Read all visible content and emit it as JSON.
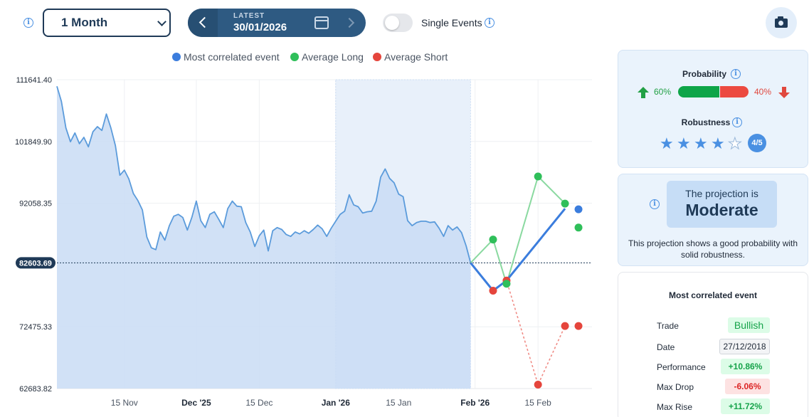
{
  "toolbar": {
    "period_selected": "1 Month",
    "date_nav_label": "LATEST",
    "date_value": "30/01/2026",
    "single_events_label": "Single Events"
  },
  "colors": {
    "most_correlated": "#3b7ddd",
    "average_long": "#2fbf5a",
    "average_short": "#e5453c",
    "history_line": "#5b9bdb",
    "history_fill": "#c9dcf4",
    "current_badge": "#1f3a57"
  },
  "chart_data": {
    "type": "line",
    "legend": [
      "Most correlated event",
      "Average Long",
      "Average Short"
    ],
    "legend_position": "top-center",
    "y_ticks": [
      "111641.40",
      "101849.90",
      "92058.35",
      "82603.69",
      "72475.33",
      "62683.82"
    ],
    "y_tick_values": [
      111641.4,
      101849.9,
      92058.35,
      82603.69,
      72475.33,
      62683.82
    ],
    "ylim": [
      62683.82,
      111641.4
    ],
    "current_value_label": "82603.69",
    "current_value": 82603.69,
    "x_ticks": [
      {
        "label": "15 Nov",
        "bold": false,
        "day": 15
      },
      {
        "label": "Dec '25",
        "bold": true,
        "day": 31
      },
      {
        "label": "15 Dec",
        "bold": false,
        "day": 45
      },
      {
        "label": "Jan '26",
        "bold": true,
        "day": 62
      },
      {
        "label": "15 Jan",
        "bold": false,
        "day": 76
      },
      {
        "label": "Feb '26",
        "bold": true,
        "day": 93
      },
      {
        "label": "15 Feb",
        "bold": false,
        "day": 107
      }
    ],
    "xlim": [
      0,
      119
    ],
    "grid": true,
    "highlight_range_days": [
      62,
      92
    ],
    "history_days": [
      0,
      1,
      2,
      3,
      4,
      5,
      6,
      7,
      8,
      9,
      10,
      11,
      12,
      13,
      14,
      15,
      16,
      17,
      18,
      19,
      20,
      21,
      22,
      23,
      24,
      25,
      26,
      27,
      28,
      29,
      30,
      31,
      32,
      33,
      34,
      35,
      36,
      37,
      38,
      39,
      40,
      41,
      42,
      43,
      44,
      45,
      46,
      47,
      48,
      49,
      50,
      51,
      52,
      53,
      54,
      55,
      56,
      57,
      58,
      59,
      60,
      61,
      62,
      63,
      64,
      65,
      66,
      67,
      68,
      69,
      70,
      71,
      72,
      73,
      74,
      75,
      76,
      77,
      78,
      79,
      80,
      81,
      82,
      83,
      84,
      85,
      86,
      87,
      88,
      89,
      90,
      91,
      92
    ],
    "history_values": [
      110600,
      108200,
      104000,
      101800,
      103200,
      101500,
      102500,
      101000,
      103400,
      104200,
      103600,
      106200,
      104000,
      101200,
      96500,
      97300,
      95900,
      93600,
      92500,
      91000,
      86700,
      85000,
      84700,
      87500,
      86200,
      88500,
      90000,
      90300,
      89800,
      87800,
      89800,
      92400,
      89300,
      88200,
      90300,
      90700,
      89500,
      88200,
      91200,
      92400,
      91600,
      91500,
      89000,
      87500,
      85200,
      86900,
      87800,
      84500,
      87700,
      88200,
      87900,
      87100,
      86800,
      87500,
      87200,
      87700,
      87300,
      87900,
      88600,
      88000,
      86800,
      88100,
      89200,
      90300,
      90800,
      93400,
      91800,
      91500,
      90500,
      90700,
      90800,
      92400,
      96200,
      97500,
      96000,
      95300,
      93500,
      93100,
      89300,
      88500,
      89000,
      89200,
      89200,
      89000,
      89100,
      88100,
      86800,
      88500,
      87800,
      88300,
      87400,
      85300,
      82600
    ],
    "series": [
      {
        "name": "Most correlated event",
        "x": [
          92,
          97,
          100,
          113
        ],
        "y": [
          82603.69,
          78200,
          79800,
          91200
        ]
      },
      {
        "name": "Average Long",
        "x": [
          92,
          97,
          100,
          107,
          113
        ],
        "y": [
          82603.69,
          86300,
          79300,
          96300,
          92000
        ]
      },
      {
        "name": "Average Short",
        "x": [
          92,
          97,
          100,
          107,
          113
        ],
        "y": [
          82603.69,
          78200,
          79800,
          63300,
          72600
        ]
      }
    ],
    "end_markers": [
      {
        "series": "Average Long",
        "x": 116,
        "y": 88200
      },
      {
        "series": "Most correlated event",
        "x": 116,
        "y": 91100
      },
      {
        "series": "Average Short",
        "x": 116,
        "y": 72600
      }
    ]
  },
  "probability": {
    "title": "Probability",
    "long_pct": "60%",
    "short_pct": "40%",
    "long_fraction": 0.6
  },
  "robustness": {
    "title": "Robustness",
    "score": 4,
    "max": 5,
    "badge": "4/5"
  },
  "projection": {
    "line1": "The projection is",
    "line2": "Moderate",
    "description": "This projection shows a good probability with solid robustness."
  },
  "most_correlated_event": {
    "title": "Most correlated event",
    "rows": [
      {
        "label": "Trade",
        "value": "Bullish",
        "tone": "green"
      },
      {
        "label": "Date",
        "value": "27/12/2018",
        "tone": "gray"
      },
      {
        "label": "Performance",
        "value": "+10.86%",
        "tone": "green"
      },
      {
        "label": "Max Drop",
        "value": "-6.06%",
        "tone": "red"
      },
      {
        "label": "Max Rise",
        "value": "+11.72%",
        "tone": "green"
      }
    ]
  }
}
